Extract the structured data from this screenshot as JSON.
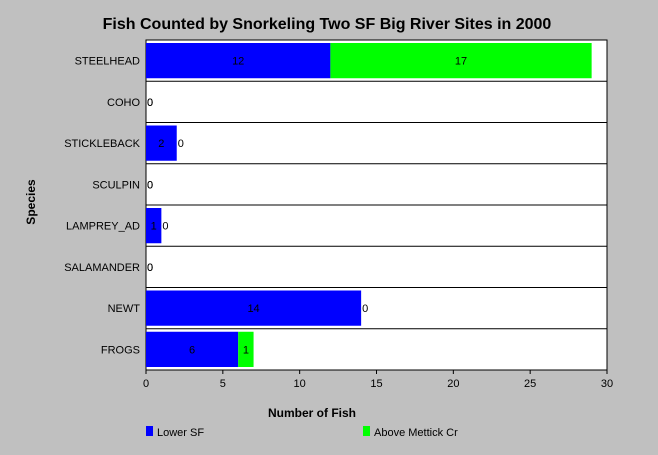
{
  "chart_data": {
    "type": "bar",
    "orientation": "horizontal",
    "stacked": true,
    "title": "Fish Counted by Snorkeling Two SF Big River Sites in 2000",
    "xlabel": "Number of Fish",
    "ylabel": "Species",
    "xlim": [
      0,
      30
    ],
    "xticks": [
      "0",
      "5",
      "10",
      "15",
      "20",
      "25",
      "30"
    ],
    "grid": "horizontal separators",
    "legend_position": "bottom",
    "categories": [
      "STEELHEAD",
      "COHO",
      "STICKLEBACK",
      "SCULPIN",
      "LAMPREY_AD",
      "SALAMANDER",
      "NEWT",
      "FROGS"
    ],
    "series": [
      {
        "name": "Lower SF",
        "color": "#0000ff",
        "values": [
          12,
          0,
          2,
          0,
          1,
          0,
          14,
          6
        ]
      },
      {
        "name": "Above Mettick Cr",
        "color": "#00ff00",
        "values": [
          17,
          0,
          0,
          0,
          0,
          0,
          0,
          1
        ]
      }
    ]
  }
}
